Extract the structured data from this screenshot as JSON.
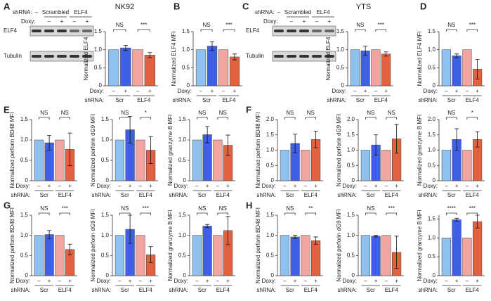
{
  "blots": [
    {
      "shrna_label": "shRNA:",
      "shrna": [
        "–",
        "Scrambled",
        "ELF4"
      ],
      "doxy_label": "Doxy:",
      "doxy": [
        "–",
        "+",
        "–",
        "+"
      ],
      "rows": [
        "ELF4",
        "Tubulin"
      ]
    },
    {
      "shrna_label": "shRNA:",
      "shrna": [
        "–",
        "Scrambled",
        "ELF4"
      ],
      "doxy_label": "Doxy:",
      "doxy": [
        "–",
        "+",
        "–",
        "+"
      ],
      "rows": [
        "ELF4",
        "Tubulin"
      ]
    }
  ],
  "chart_data": [
    {
      "type": "bar",
      "panel": "A",
      "group_title": "NK92",
      "ylabel": "Normalized ELF4",
      "x_row_labels": [
        "Doxy:",
        "shRNA:"
      ],
      "categories": [
        "–",
        "+",
        "–",
        "+"
      ],
      "groups": [
        "Scr",
        "ELF4"
      ],
      "values": [
        1.0,
        1.05,
        1.0,
        0.85
      ],
      "errors": [
        0,
        0.07,
        0,
        0.07
      ],
      "colors": [
        "#8ec0f0",
        "#3f5fe6",
        "#f2a5a0",
        "#e2623f"
      ],
      "significance": [
        "NS",
        "***"
      ],
      "ylim": [
        0,
        1.5
      ],
      "yticks": [
        0,
        0.5,
        {
          "value": 1,
          "label": "1.0"
        },
        1.5
      ]
    },
    {
      "type": "bar",
      "panel": "B",
      "ylabel": "Normalized ELF4 MFI",
      "x_row_labels": [
        "Doxy:",
        "shRNA:"
      ],
      "categories": [
        "–",
        "+",
        "–",
        "+"
      ],
      "groups": [
        "Scr",
        "ELF4"
      ],
      "values": [
        1.0,
        1.1,
        1.0,
        0.8
      ],
      "errors": [
        0,
        0.12,
        0,
        0.08
      ],
      "colors": [
        "#8ec0f0",
        "#3f5fe6",
        "#f2a5a0",
        "#e2623f"
      ],
      "significance": [
        "NS",
        "***"
      ],
      "ylim": [
        0,
        1.5
      ],
      "yticks": [
        0,
        0.5,
        {
          "value": 1,
          "label": "1.0"
        },
        1.5
      ]
    },
    {
      "type": "bar",
      "panel": "C",
      "group_title": "YTS",
      "ylabel": "Normalized ELF4",
      "x_row_labels": [
        "Doxy:",
        "shRNA:"
      ],
      "categories": [
        "–",
        "+",
        "–",
        "+"
      ],
      "groups": [
        "Scr",
        "ELF4"
      ],
      "values": [
        1.0,
        0.97,
        1.0,
        0.88
      ],
      "errors": [
        0,
        0.13,
        0,
        0.06
      ],
      "colors": [
        "#8ec0f0",
        "#3f5fe6",
        "#f2a5a0",
        "#e2623f"
      ],
      "significance": [
        "NS",
        "***"
      ],
      "ylim": [
        0,
        1.5
      ],
      "yticks": [
        0,
        0.5,
        {
          "value": 1,
          "label": "1.0"
        },
        1.5
      ]
    },
    {
      "type": "bar",
      "panel": "D",
      "ylabel": "Normalized ELF4 MFI",
      "x_row_labels": [
        "Doxy:",
        "shRNA:"
      ],
      "categories": [
        "–",
        "+",
        "–",
        "+"
      ],
      "groups": [
        "Scr",
        "ELF4"
      ],
      "values": [
        1.0,
        0.83,
        1.0,
        0.46
      ],
      "errors": [
        0,
        0.05,
        0,
        0.27
      ],
      "colors": [
        "#8ec0f0",
        "#3f5fe6",
        "#f2a5a0",
        "#e2623f"
      ],
      "significance": [
        "NS",
        "***"
      ],
      "ylim": [
        0,
        1.5
      ],
      "yticks": [
        0,
        0.5,
        {
          "value": 1,
          "label": "1.0"
        },
        1.5
      ]
    },
    {
      "type": "bar",
      "panel": "E",
      "ylabel": "Normalized perforin BD48 MFI",
      "x_row_labels": [
        "Doxy:",
        "shRNA:"
      ],
      "categories": [
        "–",
        "+",
        "–",
        "+"
      ],
      "groups": [
        "Scr",
        "ELF4"
      ],
      "values": [
        1.0,
        0.93,
        1.0,
        0.77
      ],
      "errors": [
        0,
        0.18,
        0,
        0.4
      ],
      "colors": [
        "#8ec0f0",
        "#3f5fe6",
        "#f2a5a0",
        "#e2623f"
      ],
      "significance": [
        "NS",
        "NS"
      ],
      "ylim": [
        0,
        1.5
      ],
      "yticks": [
        0,
        0.5,
        {
          "value": 1,
          "label": "1.0"
        },
        1.5
      ]
    },
    {
      "type": "bar",
      "ylabel": "Normalized perforin dG9 MFI",
      "x_row_labels": [
        "Doxy:",
        "shRNA:"
      ],
      "categories": [
        "–",
        "+",
        "–",
        "+"
      ],
      "groups": [
        "Scr",
        "ELF4"
      ],
      "values": [
        1.0,
        1.25,
        1.0,
        0.75
      ],
      "errors": [
        0,
        0.33,
        0,
        0.33
      ],
      "colors": [
        "#8ec0f0",
        "#3f5fe6",
        "#f2a5a0",
        "#e2623f"
      ],
      "significance": [
        "NS",
        "*"
      ],
      "ylim": [
        0,
        1.5
      ],
      "yticks": [
        0,
        0.5,
        {
          "value": 1,
          "label": "1.0"
        },
        1.5
      ]
    },
    {
      "type": "bar",
      "ylabel": "Normalized granzyme B MFI",
      "x_row_labels": [
        "Doxy:",
        "shRNA:"
      ],
      "categories": [
        "–",
        "+",
        "–",
        "+"
      ],
      "groups": [
        "Scr",
        "ELF4"
      ],
      "values": [
        1.0,
        1.13,
        1.0,
        0.87
      ],
      "errors": [
        0,
        0.2,
        0,
        0.25
      ],
      "colors": [
        "#8ec0f0",
        "#3f5fe6",
        "#f2a5a0",
        "#e2623f"
      ],
      "significance": [
        "NS",
        "NS"
      ],
      "ylim": [
        0,
        1.5
      ],
      "yticks": [
        0,
        0.5,
        {
          "value": 1,
          "label": "1.0"
        },
        1.5
      ]
    },
    {
      "type": "bar",
      "panel": "F",
      "ylabel": "Normalized perforin BD48 MFI",
      "x_row_labels": [
        "Doxy:",
        "shRNA:"
      ],
      "categories": [
        "–",
        "+",
        "–",
        "+"
      ],
      "groups": [
        "Scr",
        "ELF4"
      ],
      "values": [
        1.0,
        1.22,
        1.0,
        1.35
      ],
      "errors": [
        0,
        0.3,
        0,
        0.27
      ],
      "colors": [
        "#8ec0f0",
        "#3f5fe6",
        "#f2a5a0",
        "#e2623f"
      ],
      "significance": [
        "NS",
        "NS"
      ],
      "ylim": [
        0,
        2
      ],
      "yticks": [
        0,
        0.5,
        {
          "value": 1,
          "label": "1.0"
        },
        1.5,
        {
          "value": 2,
          "label": "2.0"
        }
      ]
    },
    {
      "type": "bar",
      "ylabel": "Normalized perforin dG9 MFI",
      "x_row_labels": [
        "Doxy:",
        "shRNA:"
      ],
      "categories": [
        "–",
        "+",
        "–",
        "+"
      ],
      "groups": [
        "Scr",
        "ELF4"
      ],
      "values": [
        1.0,
        1.17,
        1.0,
        1.37
      ],
      "errors": [
        0,
        0.33,
        0,
        0.47
      ],
      "colors": [
        "#8ec0f0",
        "#3f5fe6",
        "#f2a5a0",
        "#e2623f"
      ],
      "significance": [
        "NS",
        "NS"
      ],
      "ylim": [
        0,
        2
      ],
      "yticks": [
        0,
        0.5,
        {
          "value": 1,
          "label": "1.0"
        },
        1.5,
        {
          "value": 2,
          "label": "2.0"
        }
      ]
    },
    {
      "type": "bar",
      "ylabel": "Normalized granzyme B MFI",
      "x_row_labels": [
        "Doxy:",
        "shRNA:"
      ],
      "categories": [
        "–",
        "+",
        "–",
        "+"
      ],
      "groups": [
        "Scr",
        "ELF4"
      ],
      "values": [
        1.0,
        1.35,
        1.0,
        1.35
      ],
      "errors": [
        0,
        0.35,
        0,
        0.25
      ],
      "colors": [
        "#8ec0f0",
        "#3f5fe6",
        "#f2a5a0",
        "#e2623f"
      ],
      "significance": [
        "NS",
        "*"
      ],
      "ylim": [
        0,
        2
      ],
      "yticks": [
        0,
        0.5,
        {
          "value": 1,
          "label": "1.0"
        },
        1.5,
        {
          "value": 2,
          "label": "2.0"
        }
      ]
    },
    {
      "type": "bar",
      "panel": "G",
      "ylabel": "Normalized perforin BD48 MFI",
      "x_row_labels": [
        "Doxy:",
        "shRNA:"
      ],
      "categories": [
        "–",
        "+",
        "–",
        "+"
      ],
      "groups": [
        "Scr",
        "ELF4"
      ],
      "values": [
        1.0,
        1.02,
        1.0,
        0.65
      ],
      "errors": [
        0,
        0.1,
        0,
        0.13
      ],
      "colors": [
        "#8ec0f0",
        "#3f5fe6",
        "#f2a5a0",
        "#e2623f"
      ],
      "significance": [
        "NS",
        "***"
      ],
      "ylim": [
        0,
        1.5
      ],
      "yticks": [
        0,
        0.5,
        {
          "value": 1,
          "label": "1.0"
        },
        1.5
      ]
    },
    {
      "type": "bar",
      "ylabel": "Normalized perforin dG9 MFI",
      "x_row_labels": [
        "Doxy:",
        "shRNA:"
      ],
      "categories": [
        "–",
        "+",
        "–",
        "+"
      ],
      "groups": [
        "Scr",
        "ELF4"
      ],
      "values": [
        1.0,
        1.15,
        1.0,
        0.52
      ],
      "errors": [
        0,
        0.35,
        0,
        0.2
      ],
      "colors": [
        "#8ec0f0",
        "#3f5fe6",
        "#f2a5a0",
        "#e2623f"
      ],
      "significance": [
        "NS",
        "***"
      ],
      "ylim": [
        0,
        1.5
      ],
      "yticks": [
        0,
        0.5,
        {
          "value": 1,
          "label": "1.0"
        },
        1.5
      ]
    },
    {
      "type": "bar",
      "ylabel": "Normalized granzyme B MFI",
      "x_row_labels": [
        "Doxy:",
        "shRNA:"
      ],
      "categories": [
        "–",
        "+",
        "–",
        "+"
      ],
      "groups": [
        "Scr",
        "ELF4"
      ],
      "values": [
        1.0,
        1.23,
        1.0,
        1.12
      ],
      "errors": [
        0,
        0.04,
        0,
        0.35
      ],
      "colors": [
        "#8ec0f0",
        "#3f5fe6",
        "#f2a5a0",
        "#e2623f"
      ],
      "significance": [
        "NS",
        "NS"
      ],
      "ylim": [
        0,
        1.5
      ],
      "yticks": [
        0,
        0.5,
        {
          "value": 1,
          "label": "1.0"
        },
        1.5
      ]
    },
    {
      "type": "bar",
      "panel": "H",
      "ylabel": "Normalized perforin BD48 MFI",
      "x_row_labels": [
        "Doxy:",
        "shRNA:"
      ],
      "categories": [
        "–",
        "+",
        "–",
        "+"
      ],
      "groups": [
        "Scr",
        "ELF4"
      ],
      "values": [
        1.0,
        0.96,
        1.0,
        0.87
      ],
      "errors": [
        0,
        0.04,
        0,
        0.09
      ],
      "colors": [
        "#8ec0f0",
        "#3f5fe6",
        "#f2a5a0",
        "#e2623f"
      ],
      "significance": [
        "NS",
        "**"
      ],
      "ylim": [
        0,
        1.5
      ],
      "yticks": [
        0,
        0.5,
        {
          "value": 1,
          "label": "1.0"
        },
        1.5
      ]
    },
    {
      "type": "bar",
      "ylabel": "Normalized perforin dG9 MFI",
      "x_row_labels": [
        "Doxy:",
        "shRNA:"
      ],
      "categories": [
        "–",
        "+",
        "–",
        "+"
      ],
      "groups": [
        "Scr",
        "ELF4"
      ],
      "values": [
        1.0,
        0.98,
        1.0,
        0.58
      ],
      "errors": [
        0,
        0.02,
        0,
        0.4
      ],
      "colors": [
        "#8ec0f0",
        "#3f5fe6",
        "#f2a5a0",
        "#e2623f"
      ],
      "significance": [
        "NS",
        "***"
      ],
      "ylim": [
        0,
        1.5
      ],
      "yticks": [
        0,
        0.5,
        {
          "value": 1,
          "label": "1.0"
        },
        1.5
      ]
    },
    {
      "type": "bar",
      "ylabel": "Normalized granzyme B MFI",
      "x_row_labels": [
        "Doxy:",
        "shRNA:"
      ],
      "categories": [
        "–",
        "+",
        "–",
        "+"
      ],
      "groups": [
        "Scr",
        "ELF4"
      ],
      "values": [
        1.0,
        1.48,
        1.0,
        1.43
      ],
      "errors": [
        0,
        0.04,
        0,
        0.17
      ],
      "colors": [
        "#8ec0f0",
        "#3f5fe6",
        "#f2a5a0",
        "#e2623f"
      ],
      "significance": [
        "****",
        "***"
      ],
      "ylim": [
        0,
        1.6
      ],
      "yticks": [
        0,
        0.5,
        {
          "value": 1,
          "label": "1.0"
        },
        1.5
      ]
    }
  ]
}
